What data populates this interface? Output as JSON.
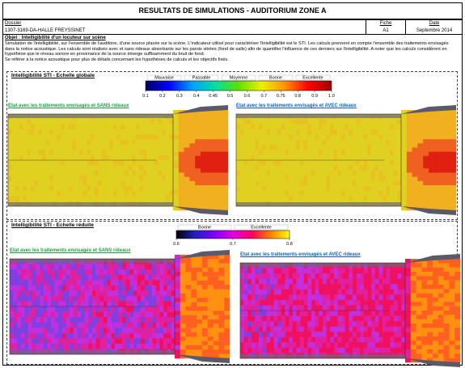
{
  "header": {
    "title": "RESULTATS DE SIMULATIONS - AUDITORIUM ZONE A",
    "dossier_label": "Dossier",
    "dossier": "1307-3169-DA-HALLE FREYSSINET",
    "fiche_label": "Fiche",
    "fiche": "A1",
    "date_label": "Date",
    "date": "Septembre 2014"
  },
  "objective": {
    "title": "Objet : Intelligibilité d'un locuteur sur scène",
    "text": "Simulation de l'intelligibilité, sur l'ensemble de l'auditoire, d'une source placée sur la scène. L'indicateur utilisé pour caractériser l'intelligibilité est le STI. Les calculs prennent en compte l'ensemble des traitements envisagés dans la notice acoustique. Les calculs sont réalisés avec et sans rideaux absorbants sur les parois vitrées (fond de salle) afin de quantifier l'influence de ces derniers sur l'intelligibilité. A noter que les calculs considèrent en hypothèse que le niveau sonore en provenance de la source émerge suffisamment du bruit de fond.",
    "note": "Se référer à la notice acoustique pour plus de détails concernant les hypothèses de calculs et les objectifs fixés."
  },
  "sections": [
    {
      "title": "Intelligibilité STI - Echelle globale",
      "scale_labels": [
        "Mauvaise",
        "Passable",
        "Moyenne",
        "Bonne",
        "Excellente"
      ],
      "scale_ticks": [
        "0.1",
        "0.2",
        "0.3",
        "0.4",
        "0.45",
        "0.5",
        "0.6",
        "0.7",
        "0.75",
        "0.8",
        "0.9",
        "1.0"
      ],
      "panels": [
        "Etat avec les traitements envisagés et SANS rideaux",
        "Etat avec les traitements envisagés et AVEC rideaux"
      ]
    },
    {
      "title": "Intelligibilité STI - Echelle réduite",
      "scale_labels": [
        "Bonne",
        "Excellente"
      ],
      "scale_ticks": [
        "0.6",
        "0.7",
        "0.8"
      ],
      "panels": [
        "Etat avec les traitements envisagés et SANS rideaux",
        "Etat avec les traitements envisagés et AVEC rideaux"
      ]
    }
  ]
}
